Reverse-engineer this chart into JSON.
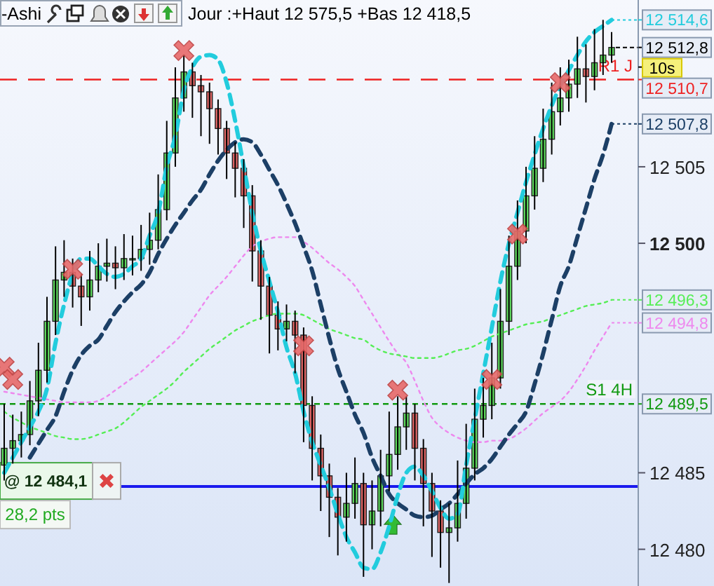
{
  "chart_data": {
    "type": "candlestick",
    "title": "Jour :+Haut 12 575,5 +Bas 12 418,5",
    "categories": [
      null,
      null,
      null,
      null,
      null,
      null,
      null,
      null,
      null,
      null,
      null,
      null,
      null,
      null,
      null,
      null,
      null,
      null,
      null,
      null,
      null,
      null,
      null,
      null,
      null,
      null,
      null,
      null,
      null,
      null,
      null,
      null,
      null,
      null,
      null,
      null,
      null,
      null,
      null,
      null,
      null,
      null,
      null,
      null,
      null,
      null,
      null,
      null,
      null,
      null,
      null,
      null,
      null,
      null,
      null,
      null,
      null,
      null,
      null,
      null,
      null,
      null,
      null,
      null,
      null,
      null,
      null,
      null,
      null,
      null,
      null,
      null
    ],
    "series": [
      {
        "type": "line",
        "color": "#ee88ee",
        "line_style": "dotted",
        "values": [
          12490.3,
          12490.2,
          12490.1,
          12490.0,
          12489.9,
          12489.8,
          12489.7,
          12489.6,
          12489.6,
          12489.6,
          12489.6,
          12489.7,
          12490.0,
          12490.4,
          12490.8,
          12491.2,
          12491.6,
          12492.1,
          12492.6,
          12493.1,
          12493.6,
          12494.2,
          12495.0,
          12495.8,
          12496.6,
          12497.2,
          12497.8,
          12498.5,
          12499.2,
          12499.8,
          12500.1,
          12500.3,
          12500.4,
          12500.4,
          12500.4,
          12500.1,
          12499.7,
          12499.2,
          12498.7,
          12498.3,
          12497.8,
          12497.2,
          12496.3,
          12495.4,
          12494.5,
          12493.6,
          12492.8,
          12492.2,
          12491.0,
          12489.7,
          12488.6,
          12488.0,
          12487.6,
          12487.3,
          12487.1,
          12487.0,
          12487.0,
          12487.1,
          12487.1,
          12487.2,
          12487.5,
          12487.9,
          12488.4,
          12488.9,
          12489.3,
          12489.7,
          12490.3,
          12491.1,
          12492.0,
          12493.0,
          12493.9,
          12494.8
        ],
        "value_labels": [
          null,
          null,
          null,
          null,
          null,
          null,
          null,
          null,
          null,
          null,
          null,
          null,
          null,
          null,
          null,
          null,
          null,
          null,
          null,
          null,
          null,
          null,
          null,
          null,
          null,
          null,
          null,
          null,
          null,
          null,
          null,
          null,
          null,
          null,
          null,
          null,
          null,
          null,
          null,
          null,
          null,
          null,
          null,
          null,
          null,
          null,
          null,
          null,
          null,
          null,
          null,
          null,
          null,
          null,
          null,
          null,
          null,
          null,
          null,
          null,
          null,
          null,
          null,
          null,
          null,
          null,
          null,
          null,
          null,
          null,
          null,
          "12 494,8"
        ]
      },
      {
        "type": "line",
        "color": "#55ee55",
        "line_style": "dotted",
        "values": [
          12489.0,
          12488.6,
          12488.3,
          12488.0,
          12487.8,
          12487.6,
          12487.4,
          12487.3,
          12487.2,
          12487.2,
          12487.3,
          12487.5,
          12487.7,
          12487.9,
          12488.3,
          12488.8,
          12489.3,
          12489.7,
          12490.1,
          12490.5,
          12491.0,
          12491.6,
          12492.1,
          12492.6,
          12493.1,
          12493.5,
          12493.9,
          12494.3,
          12494.6,
          12494.9,
          12495.1,
          12495.3,
          12495.4,
          12495.4,
          12495.4,
          12495.3,
          12495.0,
          12494.7,
          12494.4,
          12494.2,
          12494.0,
          12493.8,
          12493.7,
          12493.3,
          12493.0,
          12492.8,
          12492.7,
          12492.6,
          12492.5,
          12492.5,
          12492.5,
          12492.6,
          12492.8,
          12493.0,
          12493.1,
          12493.3,
          12493.6,
          12493.9,
          12494.1,
          12494.3,
          12494.5,
          12494.7,
          12494.8,
          12494.9,
          12495.1,
          12495.3,
          12495.5,
          12495.7,
          12495.9,
          12496.0,
          12496.1,
          12496.3
        ],
        "value_labels": [
          null,
          null,
          null,
          null,
          null,
          null,
          null,
          null,
          null,
          null,
          null,
          null,
          null,
          null,
          null,
          null,
          null,
          null,
          null,
          null,
          null,
          null,
          null,
          null,
          null,
          null,
          null,
          null,
          null,
          null,
          null,
          null,
          null,
          null,
          null,
          null,
          null,
          null,
          null,
          null,
          null,
          null,
          null,
          null,
          null,
          null,
          null,
          null,
          null,
          null,
          null,
          null,
          null,
          null,
          null,
          null,
          null,
          null,
          null,
          null,
          null,
          null,
          null,
          null,
          null,
          null,
          null,
          null,
          null,
          null,
          null,
          "12 496,3"
        ]
      },
      {
        "type": "line",
        "color": "#1c3f66",
        "line_style": "dashed",
        "values": [
          null,
          null,
          null,
          12486.0,
          12486.9,
          12487.8,
          12488.7,
          12490.3,
          12491.7,
          12492.7,
          12493.3,
          12493.7,
          12494.6,
          12495.5,
          12496.2,
          12496.8,
          12497.3,
          12498.1,
          12499.3,
          12500.3,
          12501.2,
          12502.0,
          12502.8,
          12503.5,
          12504.5,
          12505.4,
          12506.1,
          12506.6,
          12506.8,
          12506.6,
          12505.8,
          12504.8,
          12503.8,
          12502.6,
          12501.3,
          12499.8,
          12498.2,
          12496.0,
          12493.8,
          12491.8,
          12490.3,
          12488.8,
          12487.6,
          12486.0,
          12484.8,
          12483.6,
          12483.0,
          12482.6,
          12482.2,
          12482.1,
          12482.2,
          12482.6,
          12483.0,
          12483.6,
          12484.3,
          12484.9,
          12485.3,
          12485.9,
          12486.7,
          12487.5,
          12488.2,
          12489.0,
          12490.8,
          12492.8,
          12495.0,
          12497.2,
          12498.5,
          12500.4,
          12502.3,
          12504.2,
          12505.8,
          12507.8
        ],
        "value_labels": [
          null,
          null,
          null,
          null,
          null,
          null,
          null,
          null,
          null,
          null,
          null,
          null,
          null,
          null,
          null,
          null,
          null,
          null,
          null,
          null,
          null,
          null,
          null,
          null,
          null,
          null,
          null,
          null,
          null,
          null,
          null,
          null,
          null,
          null,
          null,
          null,
          null,
          null,
          null,
          null,
          null,
          null,
          null,
          null,
          null,
          null,
          null,
          null,
          null,
          null,
          null,
          null,
          null,
          null,
          null,
          null,
          null,
          null,
          null,
          null,
          null,
          null,
          null,
          null,
          null,
          null,
          null,
          null,
          null,
          null,
          null,
          "12 507,8"
        ]
      },
      {
        "type": "candlestick",
        "ohlc": [
          [
            12485.5,
            12489.5,
            12484.5,
            12486.6
          ],
          [
            12486.6,
            12488.8,
            12485.6,
            12487.1
          ],
          [
            12487.1,
            12489.0,
            12486.0,
            12487.5
          ],
          [
            12487.5,
            12491.0,
            12486.8,
            12489.7
          ],
          [
            12489.7,
            12493.5,
            12488.7,
            12491.7
          ],
          [
            12491.7,
            12496.5,
            12490.9,
            12494.9
          ],
          [
            12494.9,
            12499.8,
            12494.0,
            12497.6
          ],
          [
            12497.6,
            12500.2,
            12496.5,
            12498.1
          ],
          [
            12498.1,
            12499.0,
            12495.8,
            12497.2
          ],
          [
            12497.2,
            12498.0,
            12494.6,
            12496.5
          ],
          [
            12496.5,
            12499.5,
            12495.6,
            12497.6
          ],
          [
            12497.6,
            12500.0,
            12496.8,
            12498.5
          ],
          [
            12498.5,
            12500.3,
            12497.5,
            12498.7
          ],
          [
            12498.7,
            12499.8,
            12497.0,
            12498.4
          ],
          [
            12498.4,
            12500.6,
            12497.6,
            12499.0
          ],
          [
            12499.0,
            12500.5,
            12497.9,
            12499.0
          ],
          [
            12499.0,
            12501.2,
            12498.2,
            12499.6
          ],
          [
            12499.6,
            12502.0,
            12498.6,
            12500.2
          ],
          [
            12500.2,
            12504.5,
            12499.6,
            12502.2
          ],
          [
            12502.2,
            12508.0,
            12501.5,
            12505.9
          ],
          [
            12505.9,
            12511.5,
            12505.0,
            12509.5
          ],
          [
            12509.5,
            12512.3,
            12508.6,
            12511.2
          ],
          [
            12511.2,
            12511.8,
            12508.2,
            12510.3
          ],
          [
            12510.3,
            12511.0,
            12507.0,
            12509.9
          ],
          [
            12509.9,
            12510.5,
            12506.5,
            12508.8
          ],
          [
            12508.8,
            12509.4,
            12505.8,
            12507.5
          ],
          [
            12507.5,
            12508.0,
            12504.2,
            12505.9
          ],
          [
            12505.9,
            12506.6,
            12503.0,
            12504.9
          ],
          [
            12504.9,
            12505.5,
            12501.0,
            12503.1
          ],
          [
            12503.1,
            12503.8,
            12497.5,
            12499.5
          ],
          [
            12499.5,
            12500.2,
            12495.0,
            12497.2
          ],
          [
            12497.2,
            12497.8,
            12492.8,
            12495.3
          ],
          [
            12495.3,
            12496.2,
            12493.0,
            12494.4
          ],
          [
            12494.4,
            12496.0,
            12493.6,
            12494.9
          ],
          [
            12494.9,
            12495.6,
            12491.5,
            12494.0
          ],
          [
            12494.0,
            12494.5,
            12487.0,
            12489.4
          ],
          [
            12489.4,
            12490.0,
            12484.5,
            12486.6
          ],
          [
            12486.6,
            12487.5,
            12482.5,
            12484.8
          ],
          [
            12484.8,
            12485.6,
            12480.8,
            12483.4
          ],
          [
            12483.4,
            12484.0,
            12479.6,
            12482.1
          ],
          [
            12482.1,
            12485.0,
            12480.5,
            12483.0
          ],
          [
            12483.0,
            12486.0,
            12482.0,
            12484.3
          ],
          [
            12484.3,
            12485.0,
            12478.2,
            12481.6
          ],
          [
            12481.6,
            12484.5,
            12480.0,
            12482.5
          ],
          [
            12482.5,
            12486.5,
            12481.5,
            12484.8
          ],
          [
            12484.8,
            12489.0,
            12483.8,
            12486.2
          ],
          [
            12486.2,
            12490.0,
            12485.2,
            12488.0
          ],
          [
            12488.0,
            12490.0,
            12486.5,
            12488.9
          ],
          [
            12488.9,
            12489.5,
            12484.5,
            12486.6
          ],
          [
            12486.6,
            12487.2,
            12481.5,
            12484.3
          ],
          [
            12484.3,
            12485.0,
            12479.5,
            12482.5
          ],
          [
            12482.5,
            12483.2,
            12478.8,
            12481.1
          ],
          [
            12481.1,
            12483.0,
            12477.8,
            12481.4
          ],
          [
            12481.4,
            12485.8,
            12480.5,
            12483.0
          ],
          [
            12483.0,
            12488.2,
            12482.0,
            12485.3
          ],
          [
            12485.3,
            12490.5,
            12484.5,
            12488.5
          ],
          [
            12488.5,
            12491.2,
            12487.3,
            12489.4
          ],
          [
            12489.4,
            12493.5,
            12488.5,
            12491.2
          ],
          [
            12491.2,
            12497.0,
            12490.5,
            12494.9
          ],
          [
            12494.9,
            12500.5,
            12494.0,
            12498.5
          ],
          [
            12498.5,
            12502.8,
            12497.6,
            12500.8
          ],
          [
            12500.8,
            12505.0,
            12500.0,
            12503.1
          ],
          [
            12503.1,
            12507.0,
            12502.2,
            12504.9
          ],
          [
            12504.9,
            12508.8,
            12504.0,
            12506.8
          ],
          [
            12506.8,
            12510.5,
            12505.8,
            12508.6
          ],
          [
            12508.6,
            12511.5,
            12507.7,
            12509.5
          ],
          [
            12509.5,
            12512.0,
            12508.6,
            12510.4
          ],
          [
            12510.4,
            12513.5,
            12509.5,
            12511.4
          ],
          [
            12511.4,
            12513.0,
            12509.2,
            12510.9
          ],
          [
            12510.9,
            12514.0,
            12510.0,
            12511.8
          ],
          [
            12511.8,
            12514.6,
            12511.0,
            12512.3
          ],
          [
            12512.3,
            12513.8,
            12511.8,
            12512.8
          ]
        ],
        "colors": [
          "#5cd65c",
          "#5cd65c",
          "#5cd65c",
          "#5cd65c",
          "#5cd65c",
          "#5cd65c",
          "#5cd65c",
          "#5cd65c",
          "#e06666",
          "#e06666",
          "#5cd65c",
          "#5cd65c",
          "#5cd65c",
          "#e06666",
          "#5cd65c",
          "#5cd65c",
          "#5cd65c",
          "#5cd65c",
          "#5cd65c",
          "#5cd65c",
          "#5cd65c",
          "#5cd65c",
          "#e06666",
          "#e06666",
          "#e06666",
          "#e06666",
          "#e06666",
          "#e06666",
          "#e06666",
          "#e06666",
          "#e06666",
          "#e06666",
          "#e06666",
          "#5cd65c",
          "#e06666",
          "#e06666",
          "#e06666",
          "#e06666",
          "#e06666",
          "#e06666",
          "#5cd65c",
          "#5cd65c",
          "#e06666",
          "#5cd65c",
          "#5cd65c",
          "#5cd65c",
          "#5cd65c",
          "#5cd65c",
          "#e06666",
          "#e06666",
          "#e06666",
          "#e06666",
          "#5cd65c",
          "#5cd65c",
          "#5cd65c",
          "#5cd65c",
          "#5cd65c",
          "#5cd65c",
          "#5cd65c",
          "#5cd65c",
          "#5cd65c",
          "#5cd65c",
          "#5cd65c",
          "#5cd65c",
          "#5cd65c",
          "#5cd65c",
          "#5cd65c",
          "#5cd65c",
          "#e06666",
          "#5cd65c",
          "#5cd65c",
          "#5cd65c"
        ]
      },
      {
        "type": "line",
        "color": "#22ccdd",
        "line_style": "dashed",
        "values": [
          12485.0,
          12486.0,
          12487.0,
          12488.0,
          12489.0,
          12490.5,
          12493.5,
          12496.0,
          12498.0,
          12499.0,
          12499.0,
          12498.5,
          12498.0,
          12497.8,
          12498.0,
          12498.5,
          12499.0,
          12500.5,
          12502.0,
          12505.0,
          12507.0,
          12510.0,
          12511.5,
          12512.2,
          12512.3,
          12512.0,
          12510.5,
          12508.0,
          12505.0,
          12502.0,
          12499.5,
          12497.5,
          12495.5,
          12493.2,
          12491.5,
          12489.0,
          12487.0,
          12485.5,
          12484.0,
          12482.3,
          12480.8,
          12479.8,
          12478.8,
          12478.7,
          12479.8,
          12481.5,
          12483.5,
          12485.0,
          12485.4,
          12484.8,
          12483.8,
          12482.7,
          12482.0,
          12482.3,
          12485.5,
          12488.5,
          12491.5,
          12494.5,
          12497.5,
          12500.0,
          12502.0,
          12504.0,
          12505.8,
          12507.5,
          12509.0,
          12510.3,
          12511.3,
          12512.3,
          12513.2,
          12513.8,
          12514.2,
          12514.6
        ],
        "value_labels": [
          null,
          null,
          null,
          null,
          null,
          null,
          null,
          null,
          null,
          null,
          null,
          null,
          null,
          null,
          null,
          null,
          null,
          null,
          null,
          null,
          null,
          null,
          null,
          null,
          null,
          null,
          null,
          null,
          null,
          null,
          null,
          null,
          null,
          null,
          null,
          null,
          null,
          null,
          null,
          null,
          null,
          null,
          null,
          null,
          null,
          null,
          null,
          null,
          null,
          null,
          null,
          null,
          null,
          null,
          null,
          null,
          null,
          null,
          null,
          null,
          null,
          null,
          null,
          null,
          null,
          null,
          null,
          null,
          null,
          null,
          null,
          "12 514,6"
        ]
      },
      {
        "type": "scatter",
        "color": "#e86a6a",
        "marker": "cross",
        "values": [
          12491.9,
          12491.1,
          null,
          null,
          null,
          null,
          null,
          null,
          12498.3,
          null,
          null,
          null,
          null,
          null,
          null,
          null,
          null,
          null,
          null,
          null,
          null,
          12512.6,
          null,
          null,
          null,
          null,
          null,
          null,
          null,
          null,
          null,
          null,
          null,
          null,
          null,
          12493.3,
          null,
          null,
          null,
          null,
          null,
          null,
          null,
          null,
          null,
          null,
          12490.4,
          null,
          null,
          null,
          null,
          null,
          null,
          null,
          null,
          null,
          null,
          12491.1,
          null,
          null,
          12500.6,
          null,
          null,
          null,
          null,
          12510.5,
          null,
          null,
          null,
          null,
          null,
          null
        ]
      }
    ],
    "ylim": [
      12477.6,
      12515.9
    ],
    "yticks": [
      {
        "value": 12480,
        "label": "12 480"
      },
      {
        "value": 12485,
        "label": "12 485"
      },
      {
        "value": 12500,
        "label": "12 500"
      },
      {
        "value": 12505,
        "label": "12 505"
      }
    ],
    "tick_labels": "y",
    "grid": false,
    "ref_lines": [
      {
        "axis": "y",
        "value": 12510.7,
        "label": "R1 J",
        "color": "#ee2222",
        "line_style": "dashed"
      },
      {
        "axis": "y",
        "value": 12489.5,
        "label": "S1 4H",
        "color": "#119911",
        "line_style": "dashed"
      },
      {
        "axis": "y",
        "value": 12484.1,
        "label": "@ 12 484,1",
        "color": "#1a1aee",
        "line_style": "solid"
      }
    ],
    "annotations": [
      "-Ashi",
      "10s",
      "28,2 pts",
      "12 512,8",
      "12 510,7",
      "12 489,5"
    ]
  }
}
